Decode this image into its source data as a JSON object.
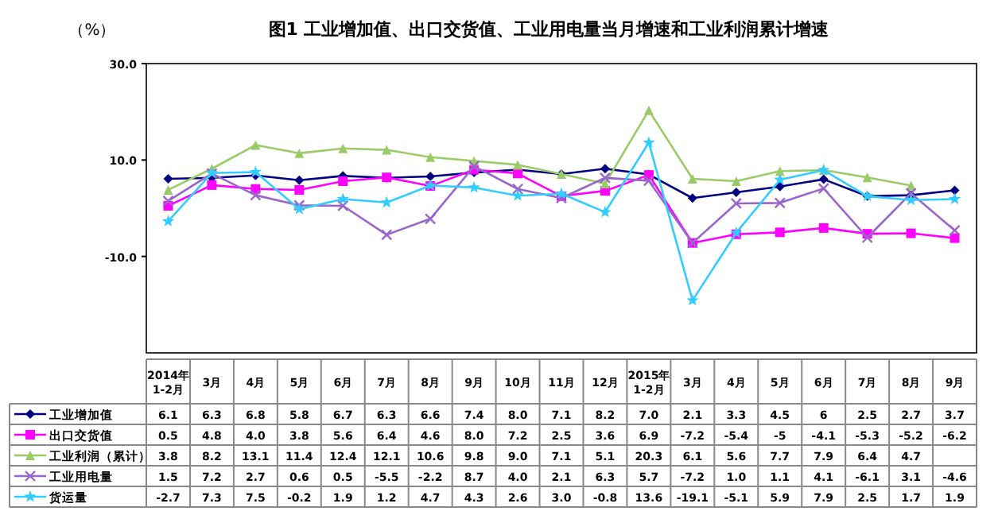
{
  "chart_data": {
    "type": "line",
    "title": "图1 工业增加值、出口交货值、工业用电量当月增速和工业利润累计增速",
    "ylabel": "（%）",
    "categories": [
      "2014年\n1-2月",
      "3月",
      "4月",
      "5月",
      "6月",
      "7月",
      "8月",
      "9月",
      "10月",
      "11月",
      "12月",
      "2015年\n1-2月",
      "3月",
      "4月",
      "5月",
      "6月",
      "7月",
      "8月",
      "9月"
    ],
    "ylim": [
      -30,
      30
    ],
    "yticks": [
      {
        "value": 30,
        "label": "30.0"
      },
      {
        "value": 10,
        "label": "10.0"
      },
      {
        "value": -10,
        "label": "-10.0"
      }
    ],
    "legend": "bottom",
    "series": [
      {
        "name": "工业增加值",
        "color": "#000080",
        "marker": "diamond",
        "values": [
          6.1,
          6.3,
          6.8,
          5.8,
          6.7,
          6.3,
          6.6,
          7.4,
          8.0,
          7.1,
          8.2,
          7.0,
          2.1,
          3.3,
          4.5,
          6,
          2.5,
          2.7,
          3.7
        ],
        "value_labels": [
          "6.1",
          "6.3",
          "6.8",
          "5.8",
          "6.7",
          "6.3",
          "6.6",
          "7.4",
          "8.0",
          "7.1",
          "8.2",
          "7.0",
          "2.1",
          "3.3",
          "4.5",
          "6",
          "2.5",
          "2.7",
          "3.7"
        ]
      },
      {
        "name": "出口交货值",
        "color": "#ff00ff",
        "marker": "square",
        "values": [
          0.5,
          4.8,
          4.0,
          3.8,
          5.6,
          6.4,
          4.6,
          8.0,
          7.2,
          2.5,
          3.6,
          6.9,
          -7.2,
          -5.4,
          -5,
          -4.1,
          -5.3,
          -5.2,
          -6.2
        ],
        "value_labels": [
          "0.5",
          "4.8",
          "4.0",
          "3.8",
          "5.6",
          "6.4",
          "4.6",
          "8.0",
          "7.2",
          "2.5",
          "3.6",
          "6.9",
          "-7.2",
          "-5.4",
          "-5",
          "-4.1",
          "-5.3",
          "-5.2",
          "-6.2"
        ]
      },
      {
        "name": "工业利润（累计）",
        "color": "#99cc66",
        "marker": "triangle",
        "values": [
          3.8,
          8.2,
          13.1,
          11.4,
          12.4,
          12.1,
          10.6,
          9.8,
          9.0,
          7.1,
          5.1,
          20.3,
          6.1,
          5.6,
          7.7,
          7.9,
          6.4,
          4.7,
          null
        ],
        "value_labels": [
          "3.8",
          "8.2",
          "13.1",
          "11.4",
          "12.4",
          "12.1",
          "10.6",
          "9.8",
          "9.0",
          "7.1",
          "5.1",
          "20.3",
          "6.1",
          "5.6",
          "7.7",
          "7.9",
          "6.4",
          "4.7",
          null
        ]
      },
      {
        "name": "工业用电量",
        "color": "#9966cc",
        "marker": "cross",
        "values": [
          1.5,
          7.2,
          2.7,
          0.6,
          0.5,
          -5.5,
          -2.2,
          8.7,
          4.0,
          2.1,
          6.3,
          5.7,
          -7.2,
          1.0,
          1.1,
          4.1,
          -6.1,
          3.1,
          -4.6
        ],
        "value_labels": [
          "1.5",
          "7.2",
          "2.7",
          "0.6",
          "0.5",
          "-5.5",
          "-2.2",
          "8.7",
          "4.0",
          "2.1",
          "6.3",
          "5.7",
          "-7.2",
          "1.0",
          "1.1",
          "4.1",
          "-6.1",
          "3.1",
          "-4.6"
        ]
      },
      {
        "name": "货运量",
        "color": "#33ccff",
        "marker": "star",
        "values": [
          -2.7,
          7.3,
          7.5,
          -0.2,
          1.9,
          1.2,
          4.7,
          4.3,
          2.6,
          3.0,
          -0.8,
          13.6,
          -19.1,
          -5.1,
          5.9,
          7.9,
          2.5,
          1.7,
          1.9
        ],
        "value_labels": [
          "-2.7",
          "7.3",
          "7.5",
          "-0.2",
          "1.9",
          "1.2",
          "4.7",
          "4.3",
          "2.6",
          "3.0",
          "-0.8",
          "13.6",
          "-19.1",
          "-5.1",
          "5.9",
          "7.9",
          "2.5",
          "1.7",
          "1.9"
        ]
      }
    ]
  }
}
